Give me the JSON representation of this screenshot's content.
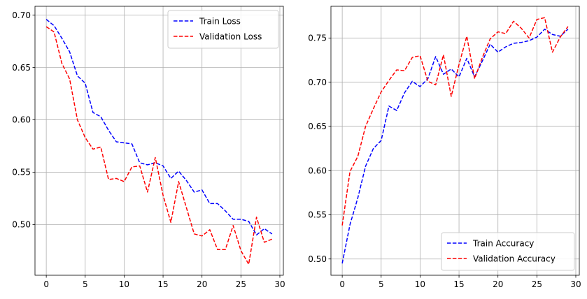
{
  "chart_data": [
    {
      "type": "line",
      "title": "",
      "xlabel": "",
      "ylabel": "",
      "xlim": [
        -1.45,
        30.45
      ],
      "ylim": [
        0.4515,
        0.7085
      ],
      "xticks": [
        0,
        5,
        10,
        15,
        20,
        25,
        30
      ],
      "yticks": [
        0.5,
        0.55,
        0.6,
        0.65,
        0.7
      ],
      "xtick_labels": [
        "0",
        "5",
        "10",
        "15",
        "20",
        "25",
        "30"
      ],
      "ytick_labels": [
        "0.50",
        "0.55",
        "0.60",
        "0.65",
        "0.70"
      ],
      "grid": true,
      "legend_position": "upper right",
      "x": [
        0,
        1,
        2,
        3,
        4,
        5,
        6,
        7,
        8,
        9,
        10,
        11,
        12,
        13,
        14,
        15,
        16,
        17,
        18,
        19,
        20,
        21,
        22,
        23,
        24,
        25,
        26,
        27,
        28,
        29
      ],
      "series": [
        {
          "name": "Train Loss",
          "color": "#0000ff",
          "dash": "dashed",
          "values": [
            0.696,
            0.69,
            0.678,
            0.665,
            0.642,
            0.635,
            0.607,
            0.603,
            0.59,
            0.579,
            0.578,
            0.577,
            0.559,
            0.557,
            0.559,
            0.556,
            0.544,
            0.551,
            0.542,
            0.531,
            0.533,
            0.52,
            0.52,
            0.513,
            0.505,
            0.505,
            0.503,
            0.49,
            0.496,
            0.491
          ]
        },
        {
          "name": "Validation Loss",
          "color": "#ff0000",
          "dash": "dashed",
          "values": [
            0.689,
            0.684,
            0.654,
            0.639,
            0.6,
            0.583,
            0.572,
            0.574,
            0.543,
            0.544,
            0.541,
            0.555,
            0.556,
            0.531,
            0.564,
            0.528,
            0.502,
            0.541,
            0.516,
            0.491,
            0.489,
            0.495,
            0.476,
            0.476,
            0.499,
            0.475,
            0.462,
            0.507,
            0.483,
            0.486
          ]
        }
      ]
    },
    {
      "type": "line",
      "title": "",
      "xlabel": "",
      "ylabel": "",
      "xlim": [
        -1.45,
        30.45
      ],
      "ylim": [
        0.4816,
        0.7859
      ],
      "xticks": [
        0,
        5,
        10,
        15,
        20,
        25,
        30
      ],
      "yticks": [
        0.5,
        0.55,
        0.6,
        0.65,
        0.7,
        0.75
      ],
      "xtick_labels": [
        "0",
        "5",
        "10",
        "15",
        "20",
        "25",
        "30"
      ],
      "ytick_labels": [
        "0.50",
        "0.55",
        "0.60",
        "0.65",
        "0.70",
        "0.75"
      ],
      "grid": true,
      "legend_position": "lower right",
      "x": [
        0,
        1,
        2,
        3,
        4,
        5,
        6,
        7,
        8,
        9,
        10,
        11,
        12,
        13,
        14,
        15,
        16,
        17,
        18,
        19,
        20,
        21,
        22,
        23,
        24,
        25,
        26,
        27,
        28,
        29
      ],
      "series": [
        {
          "name": "Train Accuracy",
          "color": "#0000ff",
          "dash": "dashed",
          "values": [
            0.495,
            0.539,
            0.569,
            0.605,
            0.625,
            0.634,
            0.673,
            0.668,
            0.688,
            0.701,
            0.695,
            0.704,
            0.729,
            0.709,
            0.715,
            0.706,
            0.727,
            0.706,
            0.724,
            0.743,
            0.734,
            0.74,
            0.744,
            0.745,
            0.747,
            0.751,
            0.76,
            0.754,
            0.752,
            0.76
          ]
        },
        {
          "name": "Validation Accuracy",
          "color": "#ff0000",
          "dash": "dashed",
          "values": [
            0.538,
            0.599,
            0.616,
            0.65,
            0.67,
            0.689,
            0.702,
            0.714,
            0.713,
            0.728,
            0.73,
            0.701,
            0.697,
            0.731,
            0.684,
            0.72,
            0.752,
            0.704,
            0.728,
            0.749,
            0.757,
            0.755,
            0.769,
            0.761,
            0.75,
            0.771,
            0.773,
            0.734,
            0.751,
            0.763
          ]
        }
      ]
    }
  ]
}
